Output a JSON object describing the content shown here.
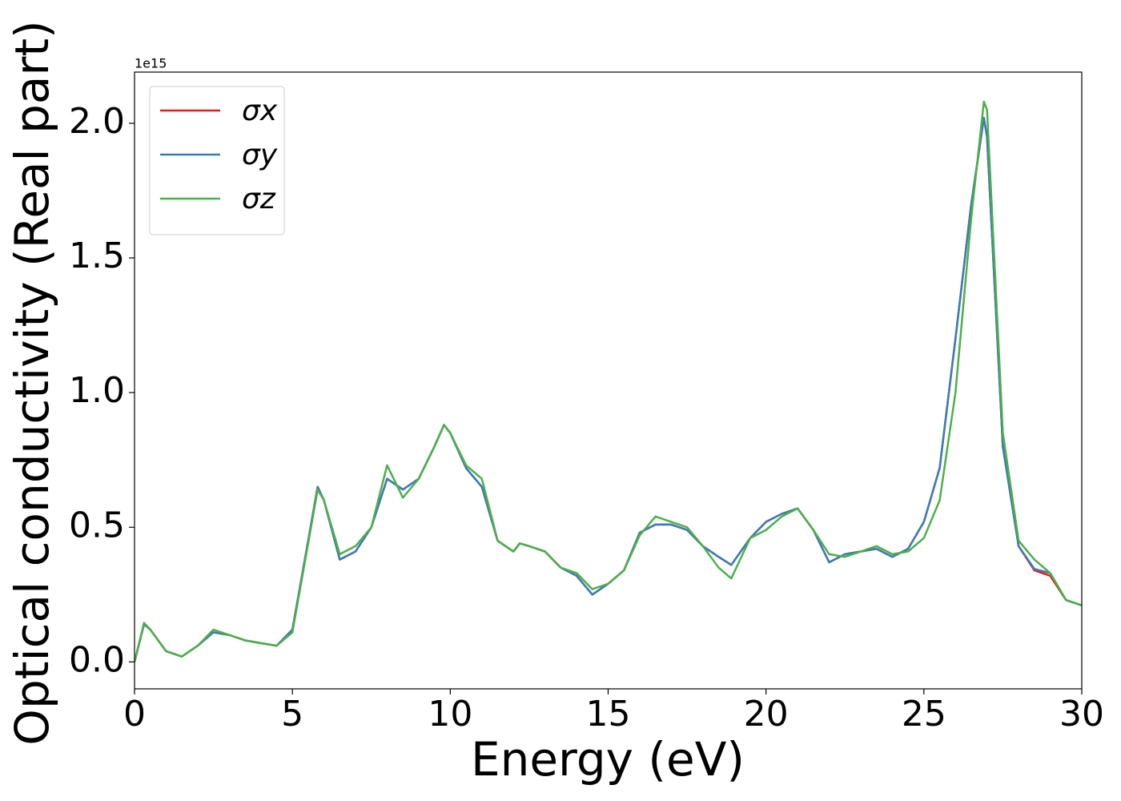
{
  "chart_data": {
    "type": "line",
    "xlabel": "Energy (eV)",
    "ylabel": "Optical conductivity (Real part)",
    "y_offset_label": "1e15",
    "xlim": [
      0,
      30
    ],
    "xticks": [
      0,
      5,
      10,
      15,
      20,
      25,
      30
    ],
    "ylim": [
      -0.1,
      2.19
    ],
    "yticks": [
      {
        "value": 0,
        "label": "0.0"
      },
      0.5,
      {
        "value": 1,
        "label": "1.0"
      },
      1.5,
      {
        "value": 2,
        "label": "2.0"
      }
    ],
    "legend": "upper left",
    "x": [
      0,
      0.3,
      0.5,
      1,
      1.5,
      2,
      2.5,
      3,
      3.5,
      4,
      4.5,
      5,
      5.5,
      5.8,
      6,
      6.5,
      7,
      7.5,
      8,
      8.5,
      9,
      9.5,
      9.8,
      10,
      10.5,
      11,
      11.5,
      12,
      12.2,
      12.5,
      13,
      13.5,
      14,
      14.5,
      15,
      15.5,
      16,
      16.5,
      17,
      17.5,
      18,
      18.5,
      18.9,
      19.5,
      20,
      20.5,
      21,
      21.5,
      22,
      22.5,
      23,
      23.5,
      24,
      24.5,
      25,
      25.5,
      26,
      26.5,
      26.9,
      27,
      27.5,
      28,
      28.5,
      29,
      29.5,
      30
    ],
    "series": [
      {
        "name": "σx",
        "color": "#e41a1c",
        "values": [
          0,
          0.14,
          0.12,
          0.04,
          0.02,
          0.06,
          0.11,
          0.1,
          0.08,
          0.07,
          0.06,
          0.12,
          0.45,
          0.65,
          0.6,
          0.38,
          0.41,
          0.5,
          0.68,
          0.64,
          0.68,
          0.8,
          0.88,
          0.85,
          0.72,
          0.65,
          0.45,
          0.41,
          0.44,
          0.43,
          0.41,
          0.35,
          0.32,
          0.25,
          0.29,
          0.34,
          0.48,
          0.51,
          0.51,
          0.49,
          0.43,
          0.39,
          0.36,
          0.46,
          0.52,
          0.55,
          0.57,
          0.49,
          0.37,
          0.4,
          0.41,
          0.42,
          0.39,
          0.42,
          0.52,
          0.72,
          1.2,
          1.7,
          2.02,
          1.95,
          0.8,
          0.43,
          0.34,
          0.32,
          0.23,
          0.21
        ]
      },
      {
        "name": "σy",
        "color": "#377eb8",
        "values": [
          0,
          0.14,
          0.12,
          0.04,
          0.02,
          0.06,
          0.11,
          0.1,
          0.08,
          0.07,
          0.06,
          0.12,
          0.45,
          0.65,
          0.6,
          0.38,
          0.41,
          0.5,
          0.68,
          0.64,
          0.68,
          0.8,
          0.88,
          0.85,
          0.72,
          0.65,
          0.45,
          0.41,
          0.44,
          0.43,
          0.41,
          0.35,
          0.32,
          0.25,
          0.29,
          0.34,
          0.48,
          0.51,
          0.51,
          0.49,
          0.43,
          0.39,
          0.36,
          0.46,
          0.52,
          0.55,
          0.57,
          0.49,
          0.37,
          0.4,
          0.41,
          0.42,
          0.39,
          0.42,
          0.52,
          0.72,
          1.2,
          1.7,
          2.02,
          1.95,
          0.8,
          0.43,
          0.345,
          0.33,
          0.23,
          0.21
        ]
      },
      {
        "name": "σz",
        "color": "#4daf4a",
        "values": [
          0,
          0.145,
          0.12,
          0.04,
          0.02,
          0.06,
          0.12,
          0.1,
          0.08,
          0.07,
          0.06,
          0.11,
          0.44,
          0.64,
          0.6,
          0.4,
          0.43,
          0.5,
          0.73,
          0.61,
          0.68,
          0.8,
          0.88,
          0.85,
          0.73,
          0.68,
          0.45,
          0.41,
          0.44,
          0.43,
          0.41,
          0.35,
          0.33,
          0.27,
          0.29,
          0.34,
          0.47,
          0.54,
          0.52,
          0.5,
          0.43,
          0.35,
          0.31,
          0.46,
          0.49,
          0.54,
          0.57,
          0.49,
          0.4,
          0.39,
          0.41,
          0.43,
          0.4,
          0.41,
          0.46,
          0.6,
          1.0,
          1.65,
          2.08,
          2.05,
          0.85,
          0.45,
          0.38,
          0.33,
          0.23,
          0.21
        ]
      }
    ]
  }
}
